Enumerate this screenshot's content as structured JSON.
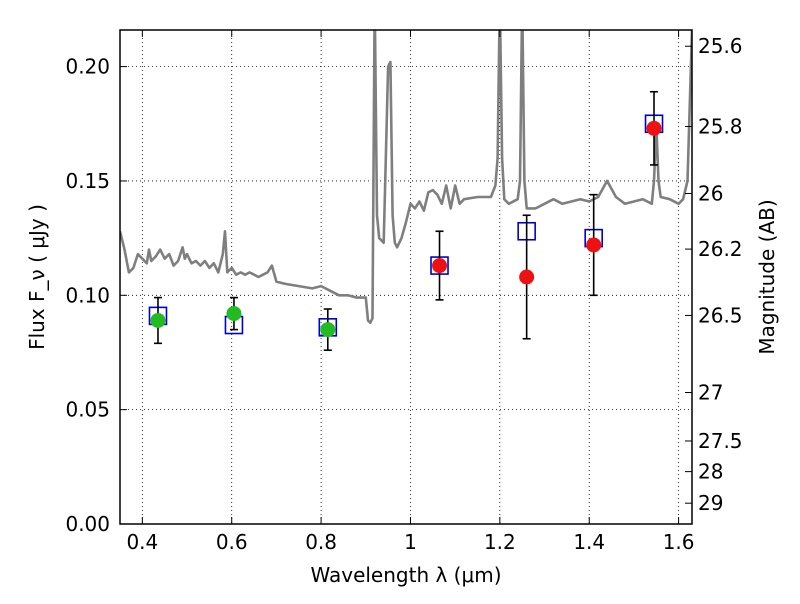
{
  "chart_data": {
    "type": "scatter",
    "title": "",
    "xlabel": "Wavelength  λ (μm)",
    "ylabel": "Flux  F_ν  ( μJy )",
    "y2label": "Magnitude (AB)",
    "xlim": [
      0.35,
      1.63
    ],
    "ylim": [
      0.0,
      0.216
    ],
    "grid": true,
    "grid_style": "dotted",
    "x_ticks": [
      0.4,
      0.6,
      0.8,
      1.0,
      1.2,
      1.4,
      1.6
    ],
    "x_tick_labels": [
      "0.4",
      "0.6",
      "0.8",
      "1",
      "1.2",
      "1.4",
      "1.6"
    ],
    "y_ticks": [
      0.0,
      0.05,
      0.1,
      0.15,
      0.2
    ],
    "y_tick_labels": [
      "0.00",
      "0.05",
      "0.10",
      "0.15",
      "0.20"
    ],
    "y2_ticks": [
      {
        "label": "25.6",
        "flux": 0.2089
      },
      {
        "label": "25.8",
        "flux": 0.1738
      },
      {
        "label": "26",
        "flux": 0.1445
      },
      {
        "label": "26.2",
        "flux": 0.1202
      },
      {
        "label": "26.5",
        "flux": 0.0912
      },
      {
        "label": "27",
        "flux": 0.0575
      },
      {
        "label": "27.5",
        "flux": 0.0363
      },
      {
        "label": "28",
        "flux": 0.0229
      },
      {
        "label": "29",
        "flux": 0.0091
      }
    ],
    "colors": {
      "model": "#7f7f7f",
      "model_points": "#0000cc",
      "optical_points": "#22bb22",
      "nir_points": "#ee1111",
      "error_bars": "#000000",
      "grid": "#000000"
    },
    "series": [
      {
        "kind": "line",
        "color": "#7f7f7f",
        "x": [
          0.35,
          0.36,
          0.37,
          0.38,
          0.39,
          0.4,
          0.41,
          0.415,
          0.42,
          0.43,
          0.44,
          0.45,
          0.46,
          0.47,
          0.48,
          0.49,
          0.495,
          0.5,
          0.51,
          0.52,
          0.53,
          0.54,
          0.55,
          0.56,
          0.57,
          0.58,
          0.585,
          0.59,
          0.6,
          0.61,
          0.62,
          0.63,
          0.64,
          0.65,
          0.66,
          0.67,
          0.68,
          0.69,
          0.7,
          0.72,
          0.75,
          0.78,
          0.8,
          0.82,
          0.84,
          0.86,
          0.88,
          0.9,
          0.905,
          0.91,
          0.915,
          0.92,
          0.925,
          0.93,
          0.94,
          0.95,
          0.955,
          0.96,
          0.965,
          0.97,
          0.98,
          0.99,
          1.0,
          1.01,
          1.02,
          1.03,
          1.04,
          1.05,
          1.06,
          1.07,
          1.08,
          1.09,
          1.1,
          1.11,
          1.12,
          1.15,
          1.18,
          1.19,
          1.195,
          1.2,
          1.205,
          1.21,
          1.22,
          1.24,
          1.245,
          1.25,
          1.255,
          1.26,
          1.28,
          1.3,
          1.32,
          1.34,
          1.36,
          1.38,
          1.4,
          1.42,
          1.44,
          1.46,
          1.48,
          1.5,
          1.52,
          1.54,
          1.545,
          1.55,
          1.555,
          1.56,
          1.58,
          1.6,
          1.61,
          1.62,
          1.63
        ],
        "y": [
          0.128,
          0.12,
          0.11,
          0.112,
          0.118,
          0.116,
          0.114,
          0.12,
          0.115,
          0.117,
          0.12,
          0.116,
          0.118,
          0.113,
          0.115,
          0.121,
          0.116,
          0.118,
          0.114,
          0.115,
          0.113,
          0.115,
          0.112,
          0.114,
          0.11,
          0.118,
          0.128,
          0.11,
          0.112,
          0.109,
          0.11,
          0.109,
          0.11,
          0.109,
          0.108,
          0.109,
          0.11,
          0.113,
          0.106,
          0.105,
          0.104,
          0.103,
          0.104,
          0.102,
          0.1,
          0.1,
          0.099,
          0.099,
          0.089,
          0.088,
          0.09,
          0.23,
          0.135,
          0.125,
          0.123,
          0.2,
          0.202,
          0.135,
          0.123,
          0.121,
          0.125,
          0.132,
          0.14,
          0.138,
          0.141,
          0.137,
          0.145,
          0.146,
          0.144,
          0.14,
          0.148,
          0.138,
          0.148,
          0.14,
          0.142,
          0.143,
          0.143,
          0.148,
          0.16,
          0.23,
          0.16,
          0.142,
          0.14,
          0.142,
          0.15,
          0.23,
          0.15,
          0.138,
          0.138,
          0.14,
          0.142,
          0.14,
          0.141,
          0.142,
          0.141,
          0.143,
          0.15,
          0.143,
          0.14,
          0.141,
          0.142,
          0.14,
          0.15,
          0.175,
          0.15,
          0.143,
          0.142,
          0.14,
          0.142,
          0.15,
          0.216
        ]
      },
      {
        "kind": "model-points",
        "marker": "open-square",
        "color": "#0000cc",
        "x": [
          0.435,
          0.605,
          0.815,
          1.065,
          1.26,
          1.41,
          1.545
        ],
        "y": [
          0.091,
          0.087,
          0.086,
          0.113,
          0.128,
          0.125,
          0.175
        ]
      },
      {
        "kind": "observed-points",
        "marker": "filled-circle",
        "color": "#22bb22",
        "x": [
          0.435,
          0.605,
          0.815
        ],
        "y": [
          0.089,
          0.092,
          0.085
        ],
        "yerr": [
          0.01,
          0.007,
          0.009
        ]
      },
      {
        "kind": "observed-points",
        "marker": "filled-circle",
        "color": "#ee1111",
        "x": [
          1.065,
          1.26,
          1.41,
          1.545
        ],
        "y": [
          0.113,
          0.108,
          0.122,
          0.173
        ],
        "yerr": [
          0.015,
          0.027,
          0.022,
          0.016
        ]
      }
    ]
  }
}
